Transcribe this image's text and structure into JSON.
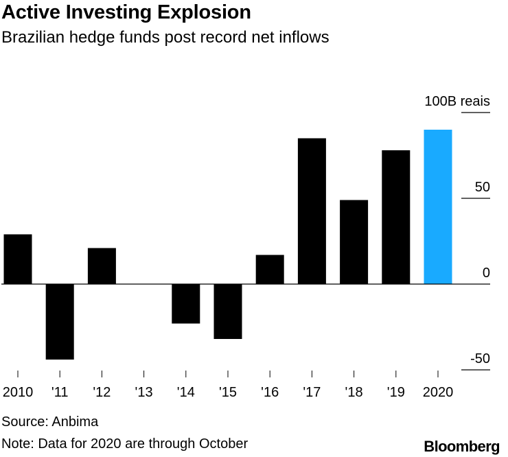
{
  "header": {
    "title": "Active Investing Explosion",
    "subtitle": "Brazilian hedge funds post record net inflows"
  },
  "chart_data": {
    "type": "bar",
    "title": "Active Investing Explosion",
    "subtitle": "Brazilian hedge funds post record net inflows",
    "xlabel": "",
    "ylabel": "",
    "unit_label": "100B reais",
    "categories": [
      "2010",
      "'11",
      "'12",
      "'13",
      "'14",
      "'15",
      "'16",
      "'17",
      "'18",
      "'19",
      "2020"
    ],
    "values": [
      29,
      -44,
      21,
      0,
      -23,
      -32,
      17,
      85,
      49,
      78,
      90
    ],
    "highlight_index": 10,
    "bar_color": "#000000",
    "highlight_color": "#19aaff",
    "ylim": [
      -50,
      100
    ],
    "yticks": [
      {
        "value": 100,
        "label": "100B reais"
      },
      {
        "value": 50,
        "label": "50"
      },
      {
        "value": 0,
        "label": "0"
      },
      {
        "value": -50,
        "label": "-50"
      }
    ],
    "grid": false,
    "legend": "none"
  },
  "footer": {
    "source": "Source: Anbima",
    "note": "Note: Data for 2020 are through October",
    "brand": "Bloomberg"
  }
}
